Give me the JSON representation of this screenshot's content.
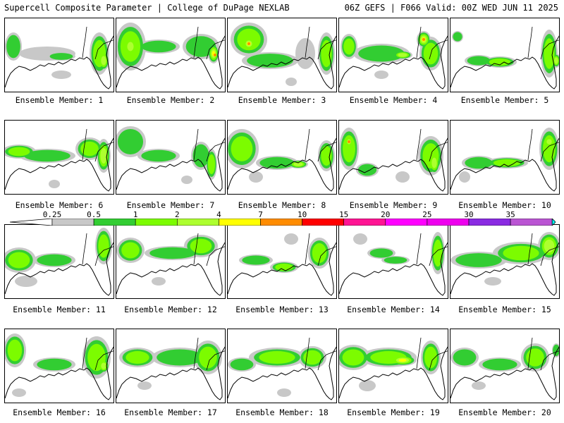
{
  "header": {
    "left": "Supercell Composite Parameter | College of DuPage NEXLAB",
    "right": "06Z GEFS | F066 Valid: 00Z WED JUN 11 2025"
  },
  "colorbar": {
    "labels": [
      "0.25",
      "0.5",
      "1",
      "2",
      "4",
      "7",
      "10",
      "15",
      "20",
      "25",
      "30",
      "35"
    ],
    "colors": [
      "#c8c8c8",
      "#32cd32",
      "#7cfc00",
      "#adff2f",
      "#ffff00",
      "#ff8c00",
      "#ff0000",
      "#ff1493",
      "#ff00ff",
      "#ee00ee",
      "#8a2be2",
      "#ba55d3",
      "#00ffff"
    ]
  },
  "members": [
    {
      "label": "Ensemble Member: 1"
    },
    {
      "label": "Ensemble Member: 2"
    },
    {
      "label": "Ensemble Member: 3"
    },
    {
      "label": "Ensemble Member: 4"
    },
    {
      "label": "Ensemble Member: 5"
    },
    {
      "label": "Ensemble Member: 6"
    },
    {
      "label": "Ensemble Member: 7"
    },
    {
      "label": "Ensemble Member: 8"
    },
    {
      "label": "Ensemble Member: 9"
    },
    {
      "label": "Ensemble Member: 10"
    },
    {
      "label": "Ensemble Member: 11"
    },
    {
      "label": "Ensemble Member: 12"
    },
    {
      "label": "Ensemble Member: 13"
    },
    {
      "label": "Ensemble Member: 14"
    },
    {
      "label": "Ensemble Member: 15"
    },
    {
      "label": "Ensemble Member: 16"
    },
    {
      "label": "Ensemble Member: 17"
    },
    {
      "label": "Ensemble Member: 18"
    },
    {
      "label": "Ensemble Member: 19"
    },
    {
      "label": "Ensemble Member: 20"
    }
  ]
}
